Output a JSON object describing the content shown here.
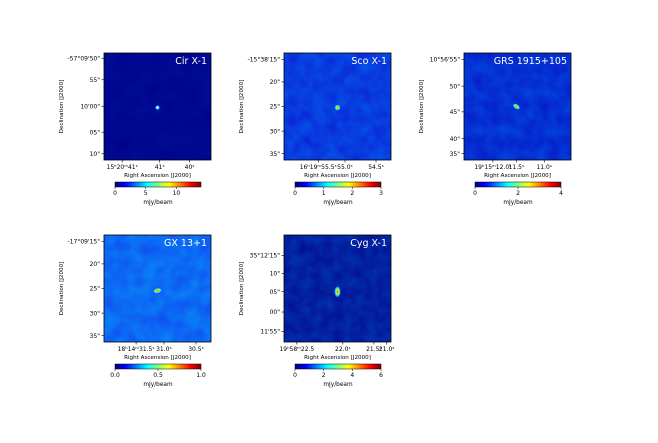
{
  "chart_data": [
    {
      "type": "heatmap",
      "title": "Cir X-1",
      "xlabel": "Right Ascension [J2000]",
      "ylabel": "Declination [J2000]",
      "xticks": [
        "15ʰ20ᵐ41ˢ",
        "41ˢ",
        "40ˢ"
      ],
      "yticks": [
        "-57°09'50\"",
        "55\"",
        "10'00\"",
        "05\"",
        "10\""
      ],
      "colorbar": {
        "label": "mJy/beam",
        "ticks": [
          "0",
          "5",
          "10"
        ],
        "range": [
          0,
          14
        ]
      },
      "peak": 14,
      "grid": false
    },
    {
      "type": "heatmap",
      "title": "Sco X-1",
      "xlabel": "Right Ascension [J2000]",
      "ylabel": "Declination [J2000]",
      "xticks": [
        "16ʰ19ᵐ55.5ˢ",
        "55.0ˢ",
        "54.5ˢ"
      ],
      "yticks": [
        "-15°38'15\"",
        "20\"",
        "25\"",
        "30\"",
        "35\""
      ],
      "colorbar": {
        "label": "mJy/beam",
        "ticks": [
          "0",
          "1",
          "2",
          "3"
        ],
        "range": [
          0,
          3
        ]
      },
      "peak": 3,
      "grid": false
    },
    {
      "type": "heatmap",
      "title": "GRS 1915+105",
      "xlabel": "Right Ascension [J2000]",
      "ylabel": "Declination [J2000]",
      "xticks": [
        "19ʰ15ᵐ12.0ˢ",
        "11.5ˢ",
        "11.0ˢ"
      ],
      "yticks": [
        "10°56'55\"",
        "50\"",
        "45\"",
        "40\"",
        "35\""
      ],
      "colorbar": {
        "label": "mJy/beam",
        "ticks": [
          "0",
          "2",
          "4"
        ],
        "range": [
          0,
          4
        ]
      },
      "peak": 4,
      "grid": false
    },
    {
      "type": "heatmap",
      "title": "GX 13+1",
      "xlabel": "Right Ascension [J2000]",
      "ylabel": "Declination [J2000]",
      "xticks": [
        "18ʰ14ᵐ31.5ˢ",
        "31.0ˢ",
        "30.5ˢ"
      ],
      "yticks": [
        "-17°09'15\"",
        "20\"",
        "25\"",
        "30\"",
        "35\""
      ],
      "colorbar": {
        "label": "mJy/beam",
        "ticks": [
          "0.0",
          "0.5",
          "1.0"
        ],
        "range": [
          0,
          1
        ]
      },
      "peak": 1,
      "grid": false
    },
    {
      "type": "heatmap",
      "title": "Cyg X-1",
      "xlabel": "Right Ascension [J2000]",
      "ylabel": "Declination [J2000]",
      "xticks": [
        "19ʰ58ᵐ22.5",
        "22.0ˢ",
        "21.5ˢ",
        "21.0ˢ"
      ],
      "yticks": [
        "35°12'15\"",
        "10\"",
        "05\"",
        "00\"",
        "11'55\""
      ],
      "colorbar": {
        "label": "mJy/beam",
        "ticks": [
          "0",
          "2",
          "4",
          "6"
        ],
        "range": [
          0,
          6
        ]
      },
      "peak": 6,
      "grid": false
    }
  ],
  "colors": {
    "jet": [
      "#00007f",
      "#0000ff",
      "#007fff",
      "#00ffff",
      "#7fff7f",
      "#ffff00",
      "#ff7f00",
      "#ff0000",
      "#7f0000"
    ],
    "background_cir": "#00008a",
    "background_sco": "#0a1fd6",
    "background_grs": "#0517c8",
    "background_gx": "#1048f0",
    "background_cyg": "#020a8c"
  }
}
